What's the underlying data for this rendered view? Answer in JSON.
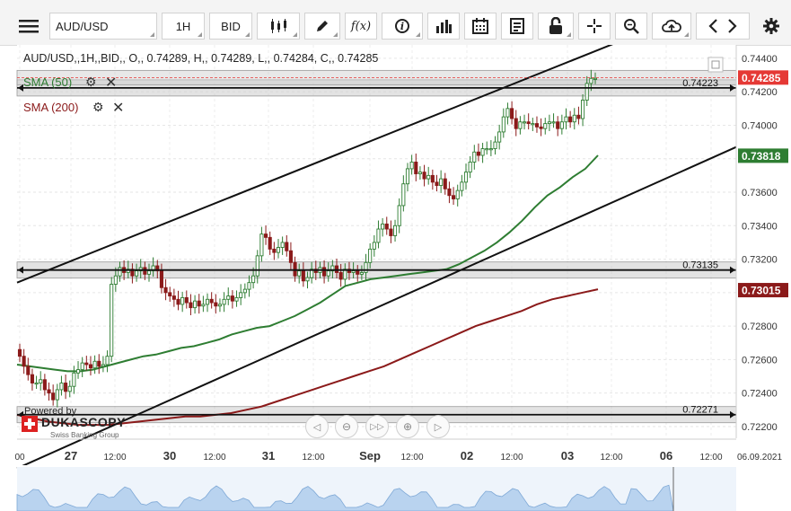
{
  "toolbar": {
    "symbol": "AUD/USD",
    "timeframe": "1H",
    "price_side": "BID",
    "fx_label": "f(x)",
    "info_label": "i"
  },
  "header": {
    "ohlc_text": "AUD/USD,,1H,,BID,, O,, 0.74289, H,, 0.74289, L,, 0.74284, C,, 0.74285"
  },
  "indicators": [
    {
      "label": "SMA (50)",
      "color": "#2e7d32"
    },
    {
      "label": "SMA (200)",
      "color": "#8b1a1a"
    }
  ],
  "branding": {
    "powered_by": "Powered by",
    "name": "DUKASCOPY",
    "tagline": "Swiss Banking Group"
  },
  "colors": {
    "bull": "#2e7d32",
    "bear": "#8b1a1a",
    "sma50": "#2e7d32",
    "sma200": "#8b1a1a",
    "price_badge": "#e53935"
  },
  "chart_data": {
    "type": "candlestick",
    "ylim": [
      0.7213,
      0.7448
    ],
    "y_ticks": [
      "0.74400",
      "0.74200",
      "0.74000",
      "0.73800",
      "0.73600",
      "0.73400",
      "0.73200",
      "0.73000",
      "0.72800",
      "0.72600",
      "0.72400",
      "0.72200"
    ],
    "x_ticks": [
      "00",
      "27",
      "12:00",
      "30",
      "12:00",
      "31",
      "12:00",
      "Sep",
      "12:00",
      "02",
      "12:00",
      "03",
      "12:00",
      "06",
      "12:00",
      "06.09.2021"
    ],
    "bold_x_ticks": [
      "27",
      "30",
      "31",
      "Sep",
      "02",
      "03",
      "06"
    ],
    "current_price": {
      "label": "0.74285",
      "value": 0.74285
    },
    "sma50_last": {
      "label": "0.73818",
      "value": 0.73818
    },
    "sma200_last": {
      "label": "0.73015",
      "value": 0.73015
    },
    "horizontal_levels": [
      {
        "label": "0.74223",
        "value": 0.74223
      },
      {
        "label": "0.73135",
        "value": 0.73135
      },
      {
        "label": "0.72271",
        "value": 0.72271
      }
    ],
    "trend_lines": [
      {
        "name": "upper-channel",
        "start": 0.7306,
        "end": 0.7478
      },
      {
        "name": "lower-channel",
        "start": 0.7195,
        "end": 0.7387
      }
    ],
    "closes": [
      0.7262,
      0.7256,
      0.7251,
      0.7246,
      0.7246,
      0.7248,
      0.7242,
      0.724,
      0.7236,
      0.7242,
      0.7246,
      0.7241,
      0.7244,
      0.7252,
      0.7254,
      0.7258,
      0.7257,
      0.7255,
      0.7259,
      0.7256,
      0.7257,
      0.7262,
      0.7305,
      0.731,
      0.7315,
      0.7312,
      0.7314,
      0.731,
      0.7313,
      0.7315,
      0.7311,
      0.7313,
      0.7316,
      0.7313,
      0.7303,
      0.73,
      0.7298,
      0.7296,
      0.7293,
      0.7297,
      0.7294,
      0.7291,
      0.7295,
      0.7292,
      0.7293,
      0.7296,
      0.7294,
      0.7292,
      0.7293,
      0.7296,
      0.7298,
      0.7295,
      0.7297,
      0.73,
      0.7302,
      0.7306,
      0.731,
      0.7322,
      0.7335,
      0.7333,
      0.7326,
      0.7324,
      0.7327,
      0.733,
      0.7325,
      0.7318,
      0.731,
      0.7313,
      0.7307,
      0.7309,
      0.7314,
      0.7312,
      0.7315,
      0.731,
      0.7313,
      0.7316,
      0.7312,
      0.7308,
      0.7314,
      0.7312,
      0.7313,
      0.7311,
      0.7312,
      0.7318,
      0.7326,
      0.733,
      0.7338,
      0.7341,
      0.7338,
      0.7334,
      0.734,
      0.7352,
      0.7365,
      0.7374,
      0.7378,
      0.7371,
      0.7372,
      0.7368,
      0.737,
      0.7366,
      0.7364,
      0.7368,
      0.7362,
      0.7358,
      0.7356,
      0.7361,
      0.7366,
      0.7372,
      0.7378,
      0.7384,
      0.7382,
      0.7386,
      0.7386,
      0.7386,
      0.739,
      0.7396,
      0.7405,
      0.741,
      0.7404,
      0.7398,
      0.7402,
      0.7402,
      0.7401,
      0.7401,
      0.7399,
      0.7398,
      0.7401,
      0.7402,
      0.7402,
      0.7398,
      0.7402,
      0.7405,
      0.7402,
      0.7406,
      0.7404,
      0.7415,
      0.7425,
      0.7428,
      0.7428
    ],
    "sma50": [
      0.7257,
      0.7256,
      0.7255,
      0.7254,
      0.7253,
      0.7253,
      0.7254,
      0.7256,
      0.7258,
      0.726,
      0.7262,
      0.7263,
      0.7265,
      0.7267,
      0.7268,
      0.727,
      0.7272,
      0.7275,
      0.7277,
      0.7279,
      0.728,
      0.7283,
      0.7286,
      0.729,
      0.7294,
      0.7299,
      0.7304,
      0.7306,
      0.7308,
      0.7309,
      0.731,
      0.7311,
      0.7312,
      0.7313,
      0.7314,
      0.7317,
      0.7321,
      0.7325,
      0.733,
      0.7336,
      0.7343,
      0.7351,
      0.7358,
      0.7363,
      0.7369,
      0.7374,
      0.7382
    ],
    "sma200": [
      0.7227,
      0.7225,
      0.7223,
      0.7222,
      0.7221,
      0.7221,
      0.7221,
      0.7222,
      0.7223,
      0.7224,
      0.7225,
      0.7226,
      0.7226,
      0.7227,
      0.7228,
      0.723,
      0.7232,
      0.7235,
      0.7238,
      0.7241,
      0.7244,
      0.7247,
      0.725,
      0.7253,
      0.7256,
      0.726,
      0.7264,
      0.7268,
      0.7272,
      0.7276,
      0.728,
      0.7283,
      0.7286,
      0.7289,
      0.7293,
      0.7296,
      0.7298,
      0.73,
      0.7302
    ]
  }
}
